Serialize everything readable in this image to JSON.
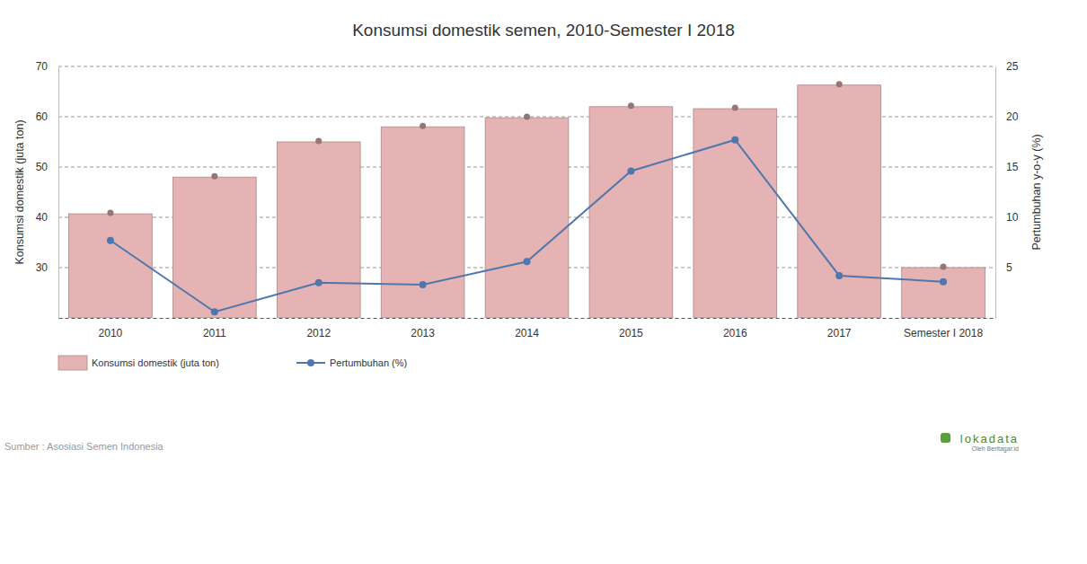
{
  "chart_data": {
    "type": "bar",
    "title": "Konsumsi domestik semen, 2010-Semester I 2018",
    "categories": [
      "2010",
      "2011",
      "2012",
      "2013",
      "2014",
      "2015",
      "2016",
      "2017",
      "Semester I 2018"
    ],
    "series": [
      {
        "name": "Konsumsi domestik (juta ton)",
        "type": "bar",
        "color": "#e5b3b3",
        "marker": "circle",
        "values": [
          40.7,
          48.0,
          55.0,
          58.0,
          59.8,
          62.0,
          61.6,
          66.3,
          30.0
        ]
      },
      {
        "name": "Pertumbuhan (%)",
        "type": "line",
        "color": "#4e77ae",
        "marker": "circle",
        "axis": "y2",
        "values": [
          7.7,
          0.6,
          3.5,
          3.3,
          5.6,
          14.6,
          17.7,
          4.2,
          3.6
        ]
      }
    ],
    "ylabel": "Konsumsi domestik (juta ton)",
    "y2label": "Pertumbuhan y-o-y (%)",
    "ylim": [
      20,
      70
    ],
    "yticks": [
      30,
      40,
      50,
      60,
      70
    ],
    "y2lim": [
      0,
      25
    ],
    "y2ticks": [
      5,
      10,
      15,
      20,
      25
    ],
    "grid": true,
    "legend": "bottom left",
    "source": "Sumber : Asosiasi Semen Indonesia",
    "annotations": [
      "lokadata",
      "Oleh Beritagar.id"
    ]
  }
}
